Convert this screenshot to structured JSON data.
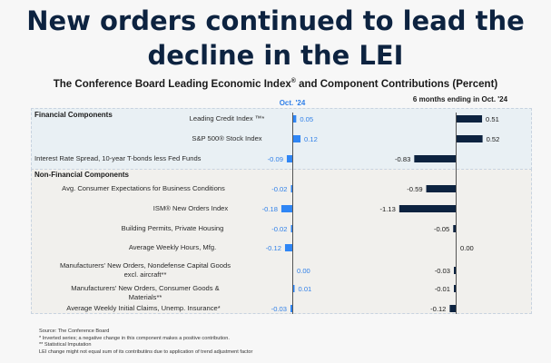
{
  "headline": {
    "line1": "New orders continued to lead the",
    "line2": "decline in the LEI"
  },
  "chart_data": {
    "type": "bar",
    "orientation": "horizontal",
    "title": "The Conference Board Leading Economic Index",
    "title_suffix": " and Component Contributions (Percent)",
    "title_mark": "®",
    "series": [
      {
        "name": "Oct. '24",
        "color": "#2f86f5",
        "label_color": "#2f7fe8"
      },
      {
        "name": "6 months ending in Oct. '24",
        "color": "#0d2340",
        "label_color": "#1a1a1a"
      }
    ],
    "groups": [
      {
        "name": "Financial Components"
      },
      {
        "name": "Non-Financial Components"
      }
    ],
    "categories": [
      {
        "group": 0,
        "label": "Leading Credit Index ™*",
        "oct": 0.05,
        "six_month": 0.51
      },
      {
        "group": 0,
        "label": "S&P 500® Stock Index",
        "oct": 0.12,
        "six_month": 0.52
      },
      {
        "group": 0,
        "label": "Interest Rate Spread, 10-year T-bonds less Fed Funds",
        "oct": -0.09,
        "six_month": -0.83
      },
      {
        "group": 1,
        "label": "Avg. Consumer Expectations for Business Conditions",
        "oct": -0.02,
        "six_month": -0.59
      },
      {
        "group": 1,
        "label": "ISM® New Orders Index",
        "oct": -0.18,
        "six_month": -1.13
      },
      {
        "group": 1,
        "label": "Building Permits, Private Housing",
        "oct": -0.02,
        "six_month": -0.05
      },
      {
        "group": 1,
        "label": "Average Weekly Hours, Mfg.",
        "oct": -0.12,
        "six_month": 0.0
      },
      {
        "group": 1,
        "label": "Manufacturers' New Orders, Nondefense Capital Goods excl. aircraft**",
        "oct": 0.0,
        "six_month": -0.03
      },
      {
        "group": 1,
        "label": "Manufacturers' New Orders, Consumer Goods & Materials**",
        "oct": 0.01,
        "six_month": -0.01
      },
      {
        "group": 1,
        "label": "Average Weekly Initial Claims, Unemp. Insurance*",
        "oct": -0.03,
        "six_month": -0.12
      }
    ],
    "xlabel": "",
    "ylabel": "",
    "grid": false,
    "legend": "column headers at top"
  },
  "footnotes": [
    "Source: The Conference Board",
    "*  Inverted series; a negative change in this component makes a positive contribution.",
    "**  Statistical Imputation",
    "LEI change might not equal sum of its contributiins due to application of trend adjustment factor"
  ]
}
